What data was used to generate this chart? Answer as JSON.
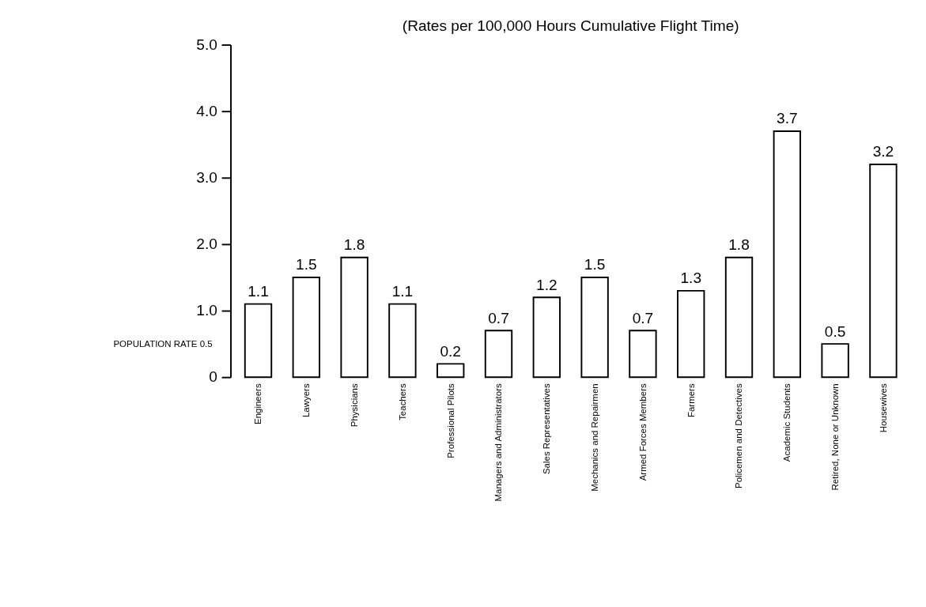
{
  "chart_data": {
    "type": "bar",
    "title": "(Rates per 100,000 Hours Cumulative Flight Time)",
    "categories": [
      "Engineers",
      "Lawyers",
      "Physicians",
      "Teachers",
      "Professional Pilots",
      "Managers and Administrators",
      "Sales Representatives",
      "Mechanics and Repairmen",
      "Armed Forces Members",
      "Farmers",
      "Policemen and Detectives",
      "Academic Students",
      "Retired, None or Unknown",
      "Housewives"
    ],
    "values": [
      1.1,
      1.5,
      1.8,
      1.1,
      0.2,
      0.7,
      1.2,
      1.5,
      0.7,
      1.3,
      1.8,
      3.7,
      0.5,
      3.2
    ],
    "color": "#ffffff",
    "ylim": [
      0,
      5
    ],
    "yticks": [
      0,
      {
        "value": 1,
        "label": "1.0"
      },
      {
        "value": 2,
        "label": "2.0"
      },
      {
        "value": 3,
        "label": "3.0"
      },
      {
        "value": 4,
        "label": "4.0"
      },
      {
        "value": 5,
        "label": "5.0"
      }
    ],
    "data_labels": true,
    "grid": false,
    "annotations": [
      "POPULATION RATE 0.5"
    ]
  }
}
